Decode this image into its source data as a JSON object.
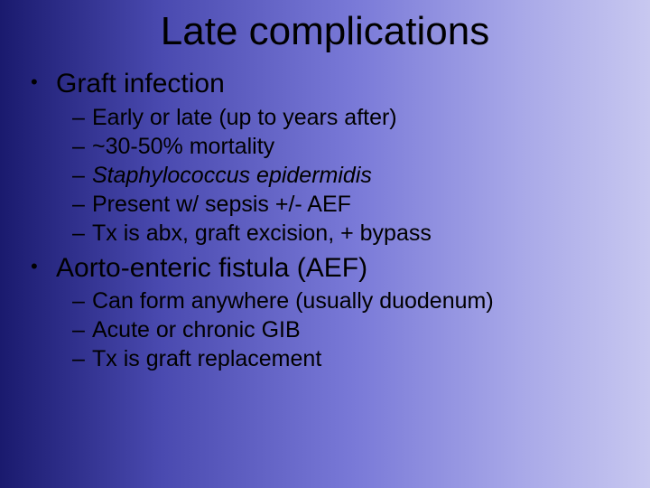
{
  "slide": {
    "background_gradient": {
      "direction": "to right",
      "stops": [
        "#1a1a6e",
        "#4a4ab0",
        "#7a7ad8",
        "#a8a8e8",
        "#c8c8f0"
      ]
    },
    "font_family": "Comic Sans MS",
    "text_color": "#000000",
    "title": {
      "text": "Late complications",
      "fontsize": 44,
      "align": "center"
    },
    "level1_fontsize": 30,
    "level2_fontsize": 25,
    "bullets": {
      "b1": {
        "marker": "•",
        "text": "Graft infection",
        "subs": {
          "s1": {
            "marker": "–",
            "text": "Early or late (up to years after)"
          },
          "s2": {
            "marker": "–",
            "text": "~30-50% mortality"
          },
          "s3": {
            "marker": "–",
            "text": "Staphylococcus epidermidis",
            "italic": true
          },
          "s4": {
            "marker": "–",
            "text": "Present w/ sepsis +/- AEF"
          },
          "s5": {
            "marker": "–",
            "text": "Tx is abx, graft excision, + bypass"
          }
        }
      },
      "b2": {
        "marker": "•",
        "text": "Aorto-enteric fistula (AEF)",
        "subs": {
          "s1": {
            "marker": "–",
            "text": "Can form anywhere (usually duodenum)"
          },
          "s2": {
            "marker": "–",
            "text": "Acute or chronic GIB"
          },
          "s3": {
            "marker": "–",
            "text": "Tx is graft replacement"
          }
        }
      }
    }
  }
}
